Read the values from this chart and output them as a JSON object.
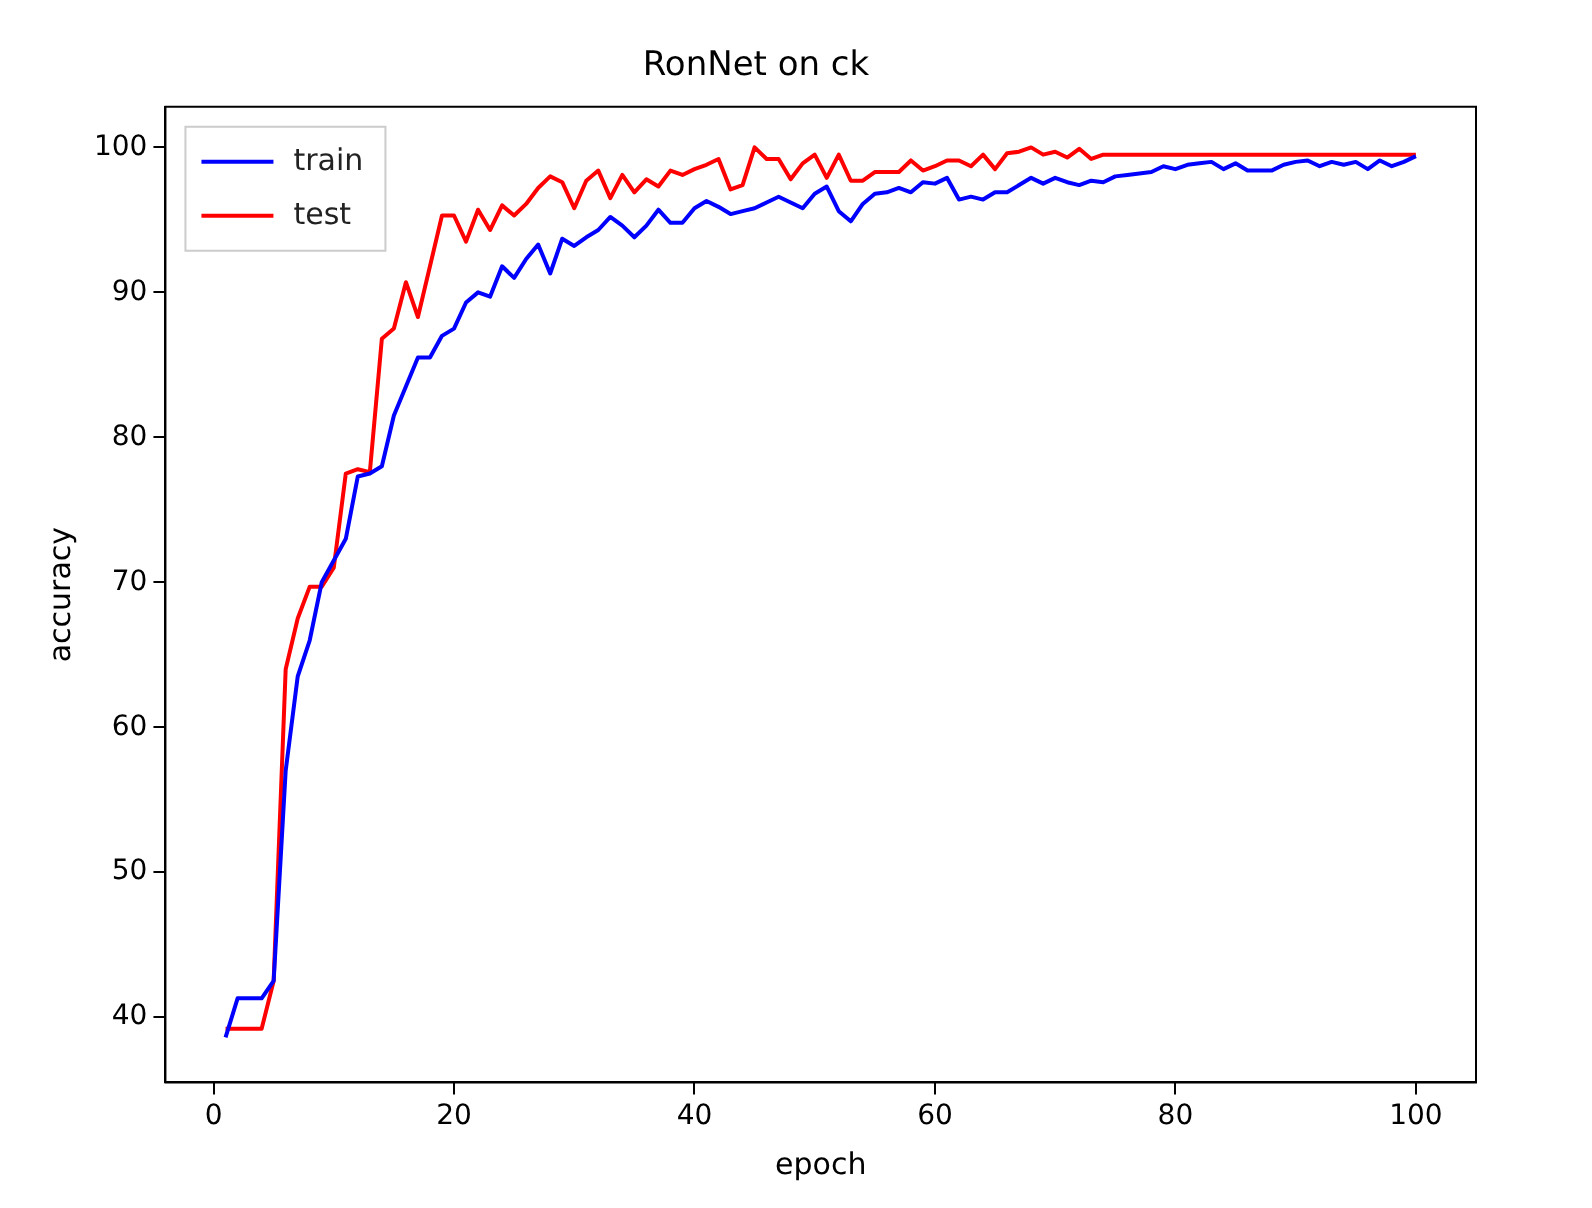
{
  "chart_data": {
    "type": "line",
    "title": "RonNet on ck",
    "xlabel": "epoch",
    "ylabel": "accuracy",
    "x": [
      1,
      2,
      3,
      4,
      5,
      6,
      7,
      8,
      9,
      10,
      11,
      12,
      13,
      14,
      15,
      16,
      17,
      18,
      19,
      20,
      21,
      22,
      23,
      24,
      25,
      26,
      27,
      28,
      29,
      30,
      31,
      32,
      33,
      34,
      35,
      36,
      37,
      38,
      39,
      40,
      41,
      42,
      43,
      44,
      45,
      46,
      47,
      48,
      49,
      50,
      51,
      52,
      53,
      54,
      55,
      56,
      57,
      58,
      59,
      60,
      61,
      62,
      63,
      64,
      65,
      66,
      67,
      68,
      69,
      70,
      71,
      72,
      73,
      74,
      75,
      76,
      77,
      78,
      79,
      80,
      81,
      82,
      83,
      84,
      85,
      86,
      87,
      88,
      89,
      90,
      91,
      92,
      93,
      94,
      95,
      96,
      97,
      98,
      99,
      100
    ],
    "series": [
      {
        "name": "train",
        "color": "#0000ff",
        "values": [
          38.6,
          41.3,
          41.3,
          41.3,
          42.5,
          57,
          63.5,
          66,
          70,
          71.5,
          73,
          77.3,
          77.5,
          78,
          81.5,
          83.5,
          85.5,
          85.5,
          87,
          87.5,
          89.3,
          90,
          89.7,
          91.8,
          91,
          92.3,
          93.3,
          91.3,
          93.7,
          93.2,
          93.8,
          94.3,
          95.2,
          94.6,
          93.8,
          94.6,
          95.7,
          94.8,
          94.8,
          95.8,
          96.3,
          95.9,
          95.4,
          95.6,
          95.8,
          96.2,
          96.6,
          96.2,
          95.8,
          96.8,
          97.3,
          95.6,
          94.9,
          96.1,
          96.8,
          96.9,
          97.2,
          96.9,
          97.6,
          97.5,
          97.9,
          96.4,
          96.6,
          96.4,
          96.9,
          96.9,
          97.4,
          97.9,
          97.5,
          97.9,
          97.6,
          97.4,
          97.7,
          97.6,
          98,
          98.1,
          98.2,
          98.3,
          98.7,
          98.5,
          98.8,
          98.9,
          99,
          98.5,
          98.9,
          98.4,
          98.4,
          98.4,
          98.8,
          99,
          99.1,
          98.7,
          99,
          98.8,
          99,
          98.5,
          99.1,
          98.7,
          99,
          99.4
        ]
      },
      {
        "name": "test",
        "color": "#ff0000",
        "values": [
          39.2,
          39.2,
          39.2,
          39.2,
          42.5,
          64,
          67.5,
          69.7,
          69.7,
          71,
          77.5,
          77.8,
          77.6,
          86.8,
          87.5,
          90.7,
          88.3,
          91.8,
          95.3,
          95.3,
          93.5,
          95.7,
          94.3,
          96,
          95.3,
          96.1,
          97.2,
          98,
          97.6,
          95.8,
          97.7,
          98.4,
          96.5,
          98.1,
          96.9,
          97.8,
          97.3,
          98.4,
          98.1,
          98.5,
          98.8,
          99.2,
          97.1,
          97.4,
          100,
          99.2,
          99.2,
          97.8,
          98.9,
          99.5,
          97.9,
          99.5,
          97.7,
          97.7,
          98.3,
          98.3,
          98.3,
          99.1,
          98.4,
          98.7,
          99.1,
          99.1,
          98.7,
          99.5,
          98.5,
          99.6,
          99.7,
          100,
          99.5,
          99.7,
          99.3,
          99.9,
          99.2,
          99.5,
          99.5,
          99.5,
          99.5,
          99.5,
          99.5,
          99.5,
          99.5,
          99.5,
          99.5,
          99.5,
          99.5,
          99.5,
          99.5,
          99.5,
          99.5,
          99.5,
          99.5,
          99.5,
          99.5,
          99.5,
          99.5,
          99.5,
          99.5,
          99.5,
          99.5,
          99.5
        ]
      }
    ],
    "xlim": [
      -4,
      105
    ],
    "xticks": [
      0,
      20,
      40,
      60,
      80,
      100
    ],
    "ylim": [
      35.5,
      102.8
    ],
    "yticks": [
      40,
      50,
      60,
      70,
      80,
      90,
      100
    ],
    "grid": false,
    "legend": "top left",
    "marker": "none",
    "line_style": "solid"
  }
}
